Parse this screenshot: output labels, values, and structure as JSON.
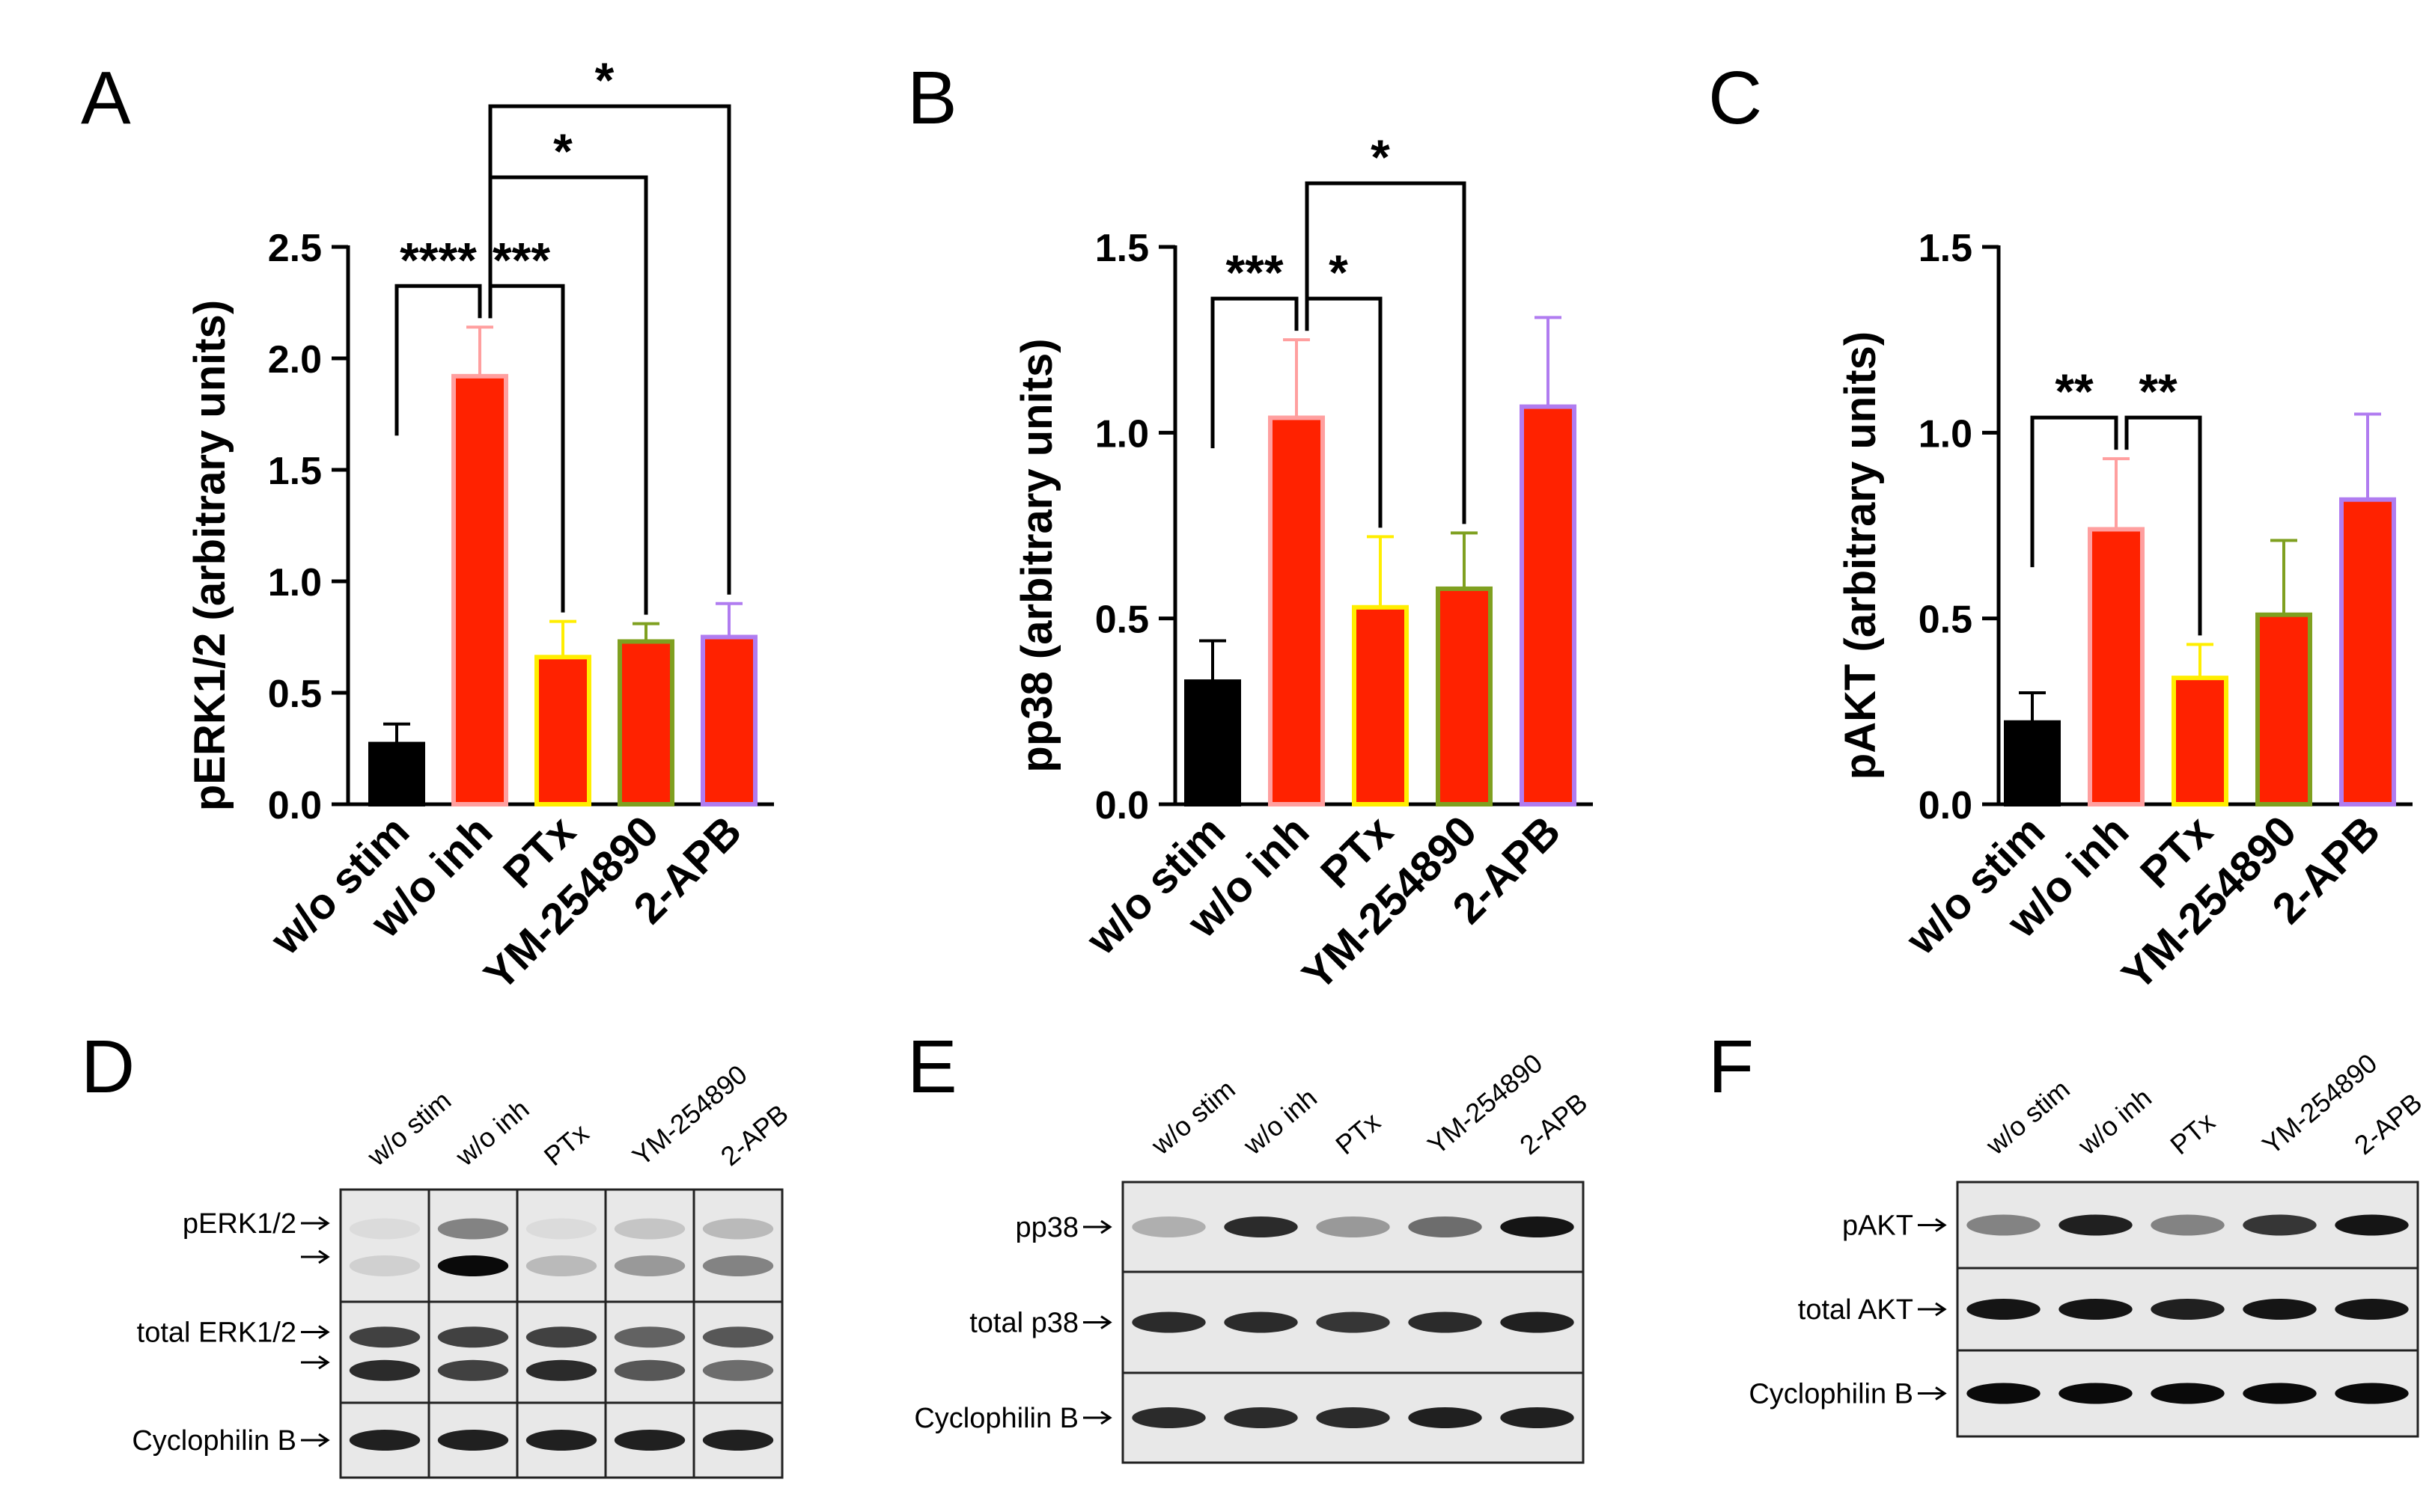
{
  "figure": {
    "panel_letters": [
      "A",
      "B",
      "C",
      "D",
      "E",
      "F"
    ]
  },
  "colors": {
    "bar_fill": "#ff2200",
    "black": "#000000",
    "outline_w_o_stim": "#000000",
    "outline_w_o_inh": "#ff9f9f",
    "outline_PTx": "#ffee00",
    "outline_YM": "#7fa020",
    "outline_2APB": "#b07cf0",
    "blot_bg": "#e8e8e8"
  },
  "chart_data": [
    {
      "panel": "A",
      "type": "bar",
      "categories": [
        "w/o stim",
        "w/o inh",
        "PTx",
        "YM-254890",
        "2-APB"
      ],
      "values": [
        0.27,
        1.92,
        0.66,
        0.73,
        0.75
      ],
      "errors": [
        0.09,
        0.22,
        0.16,
        0.08,
        0.15
      ],
      "ylabel": "pERK1/2 (arbitrary units)",
      "ylim": [
        0,
        2.5
      ],
      "yticks": [
        "0.0",
        "0.5",
        "1.0",
        "1.5",
        "2.0",
        "2.5"
      ],
      "grid": false,
      "significance": [
        {
          "from": 0,
          "to": 1,
          "label": "****"
        },
        {
          "from": 1,
          "to": 2,
          "label": "***"
        },
        {
          "from": 1,
          "to": 3,
          "label": "*"
        },
        {
          "from": 1,
          "to": 4,
          "label": "*"
        }
      ]
    },
    {
      "panel": "B",
      "type": "bar",
      "categories": [
        "w/o stim",
        "w/o inh",
        "PTx",
        "YM-254890",
        "2-APB"
      ],
      "values": [
        0.33,
        1.04,
        0.53,
        0.58,
        1.07
      ],
      "errors": [
        0.11,
        0.21,
        0.19,
        0.15,
        0.24
      ],
      "ylabel": "pp38 (arbitrary units)",
      "ylim": [
        0,
        1.5
      ],
      "yticks": [
        "0.0",
        "0.5",
        "1.0",
        "1.5"
      ],
      "grid": false,
      "significance": [
        {
          "from": 0,
          "to": 1,
          "label": "***"
        },
        {
          "from": 1,
          "to": 2,
          "label": "*"
        },
        {
          "from": 1,
          "to": 3,
          "label": "*"
        }
      ]
    },
    {
      "panel": "C",
      "type": "bar",
      "categories": [
        "w/o stim",
        "w/o inh",
        "PTx",
        "YM-254890",
        "2-APB"
      ],
      "values": [
        0.22,
        0.74,
        0.34,
        0.51,
        0.82
      ],
      "errors": [
        0.08,
        0.19,
        0.09,
        0.2,
        0.23
      ],
      "ylabel": "pAKT (arbitrary units)",
      "ylim": [
        0,
        1.5
      ],
      "yticks": [
        "0.0",
        "0.5",
        "1.0",
        "1.5"
      ],
      "grid": false,
      "significance": [
        {
          "from": 0,
          "to": 1,
          "label": "**"
        },
        {
          "from": 1,
          "to": 2,
          "label": "**"
        }
      ]
    }
  ],
  "blots": [
    {
      "panel": "D",
      "lanes": [
        "w/o stim",
        "w/o inh",
        "PTx",
        "YM-254890",
        "2-APB"
      ],
      "rows": [
        {
          "labels": [
            "pERK1/2",
            ""
          ],
          "bands": [
            [
              0.05,
              0.1
            ],
            [
              0.45,
              1.0
            ],
            [
              0.05,
              0.2
            ],
            [
              0.15,
              0.35
            ],
            [
              0.2,
              0.45
            ]
          ]
        },
        {
          "labels": [
            "total ERK1/2",
            ""
          ],
          "bands": [
            [
              0.75,
              0.85
            ],
            [
              0.75,
              0.75
            ],
            [
              0.75,
              0.85
            ],
            [
              0.6,
              0.65
            ],
            [
              0.65,
              0.55
            ]
          ]
        },
        {
          "labels": [
            "Cyclophilin B"
          ],
          "bands": [
            [
              0.9
            ],
            [
              0.9
            ],
            [
              0.9
            ],
            [
              0.9
            ],
            [
              0.9
            ]
          ]
        }
      ]
    },
    {
      "panel": "E",
      "lanes": [
        "w/o stim",
        "w/o inh",
        "PTx",
        "YM-254890",
        "2-APB"
      ],
      "rows": [
        {
          "labels": [
            "pp38"
          ],
          "bands": [
            [
              0.25
            ],
            [
              0.85
            ],
            [
              0.35
            ],
            [
              0.55
            ],
            [
              0.95
            ]
          ]
        },
        {
          "labels": [
            "total p38"
          ],
          "bands": [
            [
              0.85
            ],
            [
              0.85
            ],
            [
              0.8
            ],
            [
              0.85
            ],
            [
              0.9
            ]
          ]
        },
        {
          "labels": [
            "Cyclophilin B"
          ],
          "bands": [
            [
              0.85
            ],
            [
              0.85
            ],
            [
              0.85
            ],
            [
              0.9
            ],
            [
              0.9
            ]
          ]
        }
      ]
    },
    {
      "panel": "F",
      "lanes": [
        "w/o stim",
        "w/o inh",
        "PTx",
        "YM-254890",
        "2-APB"
      ],
      "rows": [
        {
          "labels": [
            "pAKT"
          ],
          "bands": [
            [
              0.45
            ],
            [
              0.9
            ],
            [
              0.45
            ],
            [
              0.8
            ],
            [
              0.95
            ]
          ]
        },
        {
          "labels": [
            "total AKT"
          ],
          "bands": [
            [
              0.95
            ],
            [
              0.95
            ],
            [
              0.9
            ],
            [
              0.95
            ],
            [
              0.95
            ]
          ]
        },
        {
          "labels": [
            "Cyclophilin B"
          ],
          "bands": [
            [
              1.0
            ],
            [
              1.0
            ],
            [
              1.0
            ],
            [
              1.0
            ],
            [
              1.0
            ]
          ]
        }
      ]
    }
  ]
}
